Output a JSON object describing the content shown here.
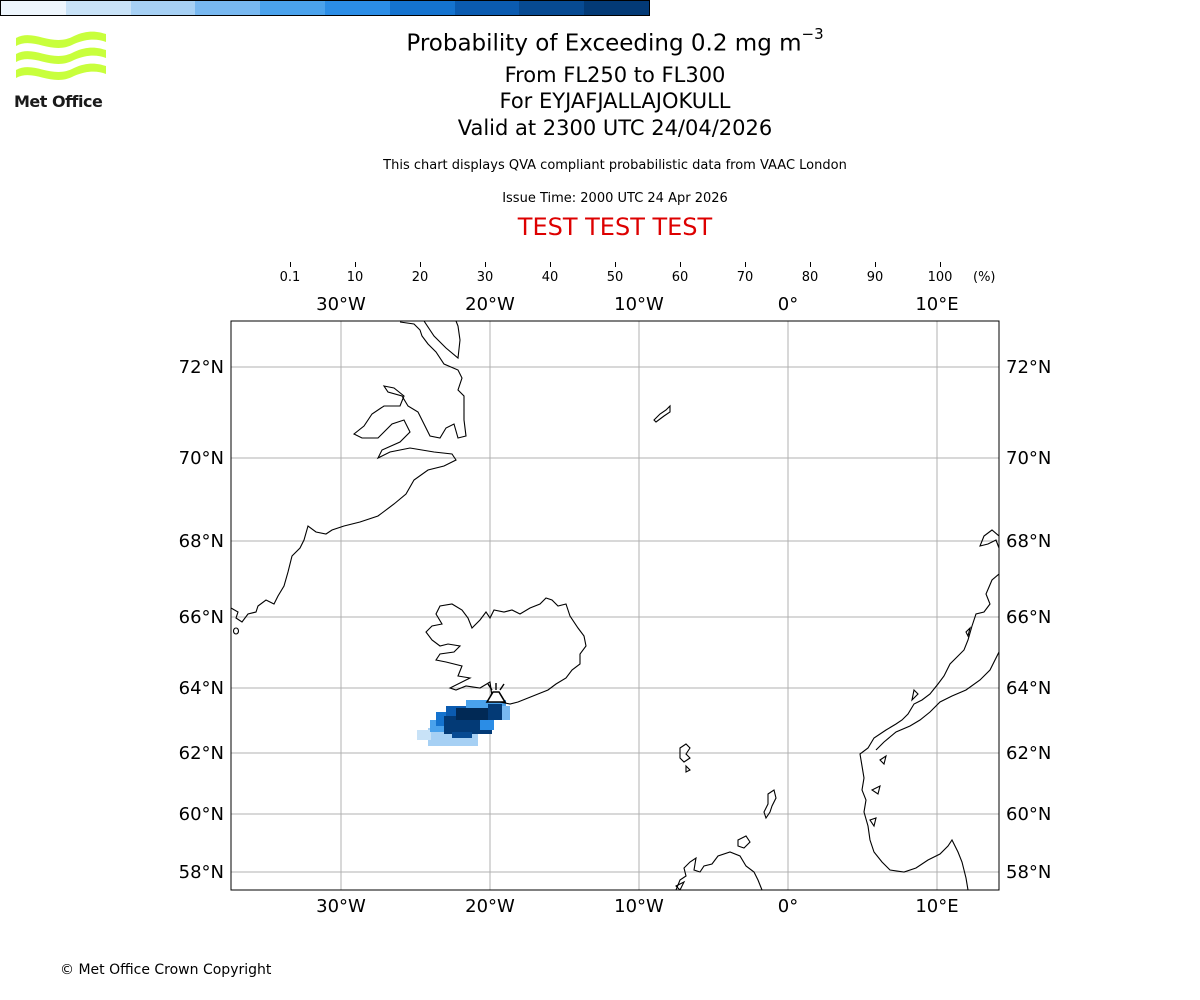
{
  "logo": {
    "text": "Met Office",
    "color": "#c8ff3c",
    "icon": "met-office-wave-logo"
  },
  "header": {
    "title_main": "Probability of Exceeding 0.2 mg m",
    "title_exp": "−3",
    "flight_levels": "From FL250 to FL300",
    "volcano": "For EYJAFJALLAJOKULL",
    "valid": "Valid at 2300 UTC 24/04/2026",
    "disclaimer": "This chart displays QVA compliant probabilistic data from VAAC London",
    "issue_time": "Issue Time: 2000 UTC 24 Apr 2026",
    "test_banner": "TEST TEST TEST",
    "test_color": "#dd0000"
  },
  "colorbar": {
    "labels": [
      "0.1",
      "10",
      "20",
      "30",
      "40",
      "50",
      "60",
      "70",
      "80",
      "90",
      "100"
    ],
    "unit": "(%)",
    "colors": [
      "#eef6fd",
      "#c8e2f7",
      "#a6d0f4",
      "#78b8f0",
      "#4aa2ec",
      "#2b8de6",
      "#1473cf",
      "#0b5bb0",
      "#074a92",
      "#033a76",
      "#012955"
    ]
  },
  "map": {
    "lon_labels": [
      "30°W",
      "20°W",
      "10°W",
      "0°",
      "10°E"
    ],
    "lat_labels": [
      "72°N",
      "70°N",
      "68°N",
      "66°N",
      "64°N",
      "62°N",
      "60°N",
      "58°N"
    ],
    "volcano_icon": "volcano-icon"
  },
  "footer": {
    "copyright": "© Met Office Crown Copyright"
  }
}
